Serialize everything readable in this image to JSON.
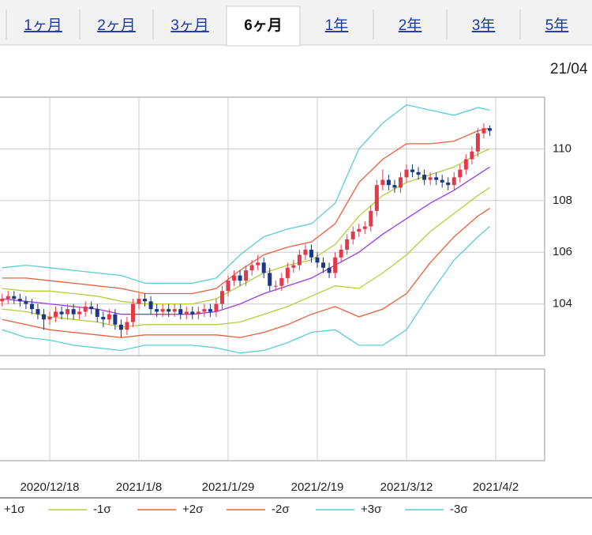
{
  "tabs": [
    "1ヶ月",
    "2ヶ月",
    "3ヶ月",
    "6ヶ月",
    "1年",
    "2年",
    "3年",
    "5年"
  ],
  "active_tab": 3,
  "date_label": "21/04",
  "chart_data": {
    "type": "candlestick",
    "categories": [
      null,
      null,
      null,
      null,
      null,
      null,
      null,
      null,
      "2020/12/18",
      null,
      null,
      null,
      null,
      null,
      null,
      null,
      null,
      null,
      null,
      null,
      null,
      null,
      null,
      "2021/1/8",
      null,
      null,
      null,
      null,
      null,
      null,
      null,
      null,
      null,
      null,
      null,
      null,
      null,
      null,
      "2021/1/29",
      null,
      null,
      null,
      null,
      null,
      null,
      null,
      null,
      null,
      null,
      null,
      null,
      null,
      null,
      "2021/2/19",
      null,
      null,
      null,
      null,
      null,
      null,
      null,
      null,
      null,
      null,
      null,
      null,
      null,
      null,
      "2021/3/12",
      null,
      null,
      null,
      null,
      null,
      null,
      null,
      null,
      null,
      null,
      null,
      null,
      null,
      null,
      "2021/4/2"
    ],
    "open": [
      104.1,
      104.2,
      104.3,
      104.2,
      104.1,
      104.0,
      103.8,
      103.6,
      103.4,
      103.5,
      103.7,
      103.6,
      103.8,
      103.6,
      103.7,
      103.9,
      103.8,
      103.5,
      103.4,
      103.6,
      103.2,
      103.0,
      103.3,
      104.0,
      104.2,
      104.1,
      103.8,
      103.7,
      103.8,
      103.7,
      103.8,
      103.6,
      103.7,
      103.6,
      103.7,
      103.8,
      103.7,
      104.0,
      104.5,
      104.9,
      105.1,
      104.9,
      105.3,
      105.5,
      105.6,
      105.2,
      104.7,
      104.7,
      105.0,
      105.4,
      105.5,
      105.9,
      106.1,
      105.8,
      105.6,
      105.4,
      105.2,
      105.8,
      106.1,
      106.5,
      106.8,
      106.9,
      107.0,
      107.6,
      108.6,
      108.8,
      108.6,
      108.5,
      108.9,
      109.2,
      109.1,
      109.0,
      108.8,
      108.9,
      108.8,
      108.7,
      108.6,
      108.9,
      109.2,
      109.6,
      109.9,
      110.6,
      110.8,
      null
    ],
    "high": [
      104.4,
      104.5,
      104.5,
      104.4,
      104.3,
      104.2,
      104.0,
      103.8,
      103.7,
      103.9,
      103.9,
      104.0,
      104.0,
      103.9,
      104.1,
      104.1,
      104.0,
      103.7,
      103.8,
      103.8,
      103.4,
      103.5,
      104.2,
      104.4,
      104.4,
      104.3,
      104.0,
      104.0,
      104.0,
      104.0,
      104.0,
      103.9,
      103.9,
      103.9,
      104.0,
      104.0,
      104.2,
      104.7,
      105.1,
      105.3,
      105.3,
      105.5,
      105.7,
      105.9,
      105.8,
      105.4,
      104.9,
      105.2,
      105.6,
      105.7,
      106.1,
      106.3,
      106.3,
      106.0,
      105.8,
      105.6,
      106.0,
      106.3,
      106.7,
      107.0,
      107.1,
      107.2,
      107.8,
      108.8,
      109.2,
      109.0,
      108.8,
      109.1,
      109.4,
      109.4,
      109.3,
      109.2,
      109.1,
      109.1,
      109.0,
      108.9,
      109.1,
      109.4,
      109.8,
      110.1,
      110.8,
      111.0,
      110.9,
      null
    ],
    "low": [
      103.9,
      104.0,
      104.0,
      103.9,
      103.8,
      103.6,
      103.4,
      103.0,
      103.2,
      103.3,
      103.4,
      103.4,
      103.4,
      103.4,
      103.5,
      103.6,
      103.3,
      103.1,
      103.2,
      103.0,
      102.7,
      102.8,
      103.1,
      103.8,
      103.9,
      103.6,
      103.5,
      103.5,
      103.5,
      103.5,
      103.4,
      103.4,
      103.4,
      103.4,
      103.5,
      103.5,
      103.5,
      103.8,
      104.3,
      104.7,
      104.7,
      104.7,
      105.1,
      105.3,
      105.0,
      104.5,
      104.5,
      104.5,
      104.8,
      105.2,
      105.3,
      105.7,
      105.6,
      105.4,
      105.2,
      105.0,
      105.0,
      105.6,
      105.9,
      106.3,
      106.6,
      106.7,
      106.8,
      107.4,
      108.4,
      108.4,
      108.3,
      108.3,
      108.7,
      108.9,
      108.8,
      108.6,
      108.6,
      108.6,
      108.5,
      108.4,
      108.4,
      108.7,
      109.0,
      109.4,
      109.7,
      110.4,
      110.5,
      null
    ],
    "close": [
      104.2,
      104.3,
      104.2,
      104.1,
      104.0,
      103.8,
      103.6,
      103.4,
      103.5,
      103.7,
      103.6,
      103.8,
      103.6,
      103.7,
      103.9,
      103.8,
      103.5,
      103.4,
      103.6,
      103.2,
      103.0,
      103.3,
      104.0,
      104.2,
      104.1,
      103.8,
      103.7,
      103.8,
      103.7,
      103.8,
      103.6,
      103.7,
      103.6,
      103.7,
      103.8,
      103.7,
      104.0,
      104.5,
      104.9,
      105.1,
      104.9,
      105.3,
      105.5,
      105.6,
      105.2,
      104.7,
      104.7,
      105.0,
      105.4,
      105.5,
      105.9,
      106.1,
      105.8,
      105.6,
      105.4,
      105.2,
      105.8,
      106.1,
      106.5,
      106.8,
      106.9,
      107.0,
      107.6,
      108.6,
      108.8,
      108.6,
      108.5,
      108.9,
      109.2,
      109.1,
      109.0,
      108.8,
      108.9,
      108.8,
      108.7,
      108.6,
      108.9,
      109.2,
      109.6,
      109.9,
      110.6,
      110.8,
      110.7,
      null
    ],
    "up_color": "#e23a4b",
    "down_color": "#1b3786",
    "ylim": [
      102,
      112
    ],
    "yticks": [
      104,
      106,
      108,
      110
    ],
    "grid": true,
    "overlays": {
      "x": [
        0,
        4,
        8,
        12,
        16,
        20,
        24,
        28,
        32,
        36,
        40,
        44,
        48,
        52,
        56,
        60,
        64,
        68,
        72,
        76,
        80,
        82
      ],
      "series": [
        {
          "color": "#9a3de6",
          "values": [
            104.2,
            104.1,
            104.0,
            103.9,
            103.8,
            103.6,
            103.6,
            103.6,
            103.6,
            103.7,
            104.0,
            104.4,
            104.7,
            105.0,
            105.5,
            106.0,
            106.7,
            107.3,
            107.9,
            108.4,
            109.0,
            109.3
          ]
        },
        {
          "name": "+1σ",
          "color": "#b8cc3c",
          "values": [
            104.6,
            104.5,
            104.5,
            104.4,
            104.3,
            104.1,
            104.0,
            104.0,
            104.0,
            104.2,
            104.7,
            105.2,
            105.5,
            105.7,
            106.3,
            107.4,
            108.2,
            108.7,
            109.0,
            109.3,
            109.8,
            110.0
          ]
        },
        {
          "name": "-1σ",
          "color": "#b8cc3c",
          "values": [
            103.8,
            103.7,
            103.5,
            103.4,
            103.3,
            103.1,
            103.2,
            103.2,
            103.2,
            103.2,
            103.3,
            103.6,
            103.9,
            104.3,
            104.7,
            104.6,
            105.2,
            105.9,
            106.8,
            107.5,
            108.2,
            108.5
          ]
        },
        {
          "name": "+2σ",
          "color": "#e9603d",
          "values": [
            105.0,
            105.0,
            104.9,
            104.8,
            104.7,
            104.6,
            104.4,
            104.4,
            104.4,
            104.6,
            105.3,
            105.9,
            106.2,
            106.4,
            107.1,
            108.7,
            109.6,
            110.2,
            110.2,
            110.3,
            110.7,
            110.8
          ]
        },
        {
          "name": "-2σ",
          "color": "#e9603d",
          "values": [
            103.4,
            103.2,
            103.0,
            102.9,
            102.8,
            102.7,
            102.8,
            102.8,
            102.8,
            102.8,
            102.7,
            102.9,
            103.2,
            103.6,
            103.9,
            103.5,
            103.8,
            104.4,
            105.6,
            106.6,
            107.4,
            107.7
          ]
        },
        {
          "name": "+3σ",
          "color": "#5ccbd6",
          "values": [
            105.4,
            105.5,
            105.4,
            105.3,
            105.2,
            105.1,
            104.8,
            104.8,
            104.8,
            105.0,
            105.9,
            106.6,
            106.9,
            107.1,
            107.9,
            110.0,
            111.0,
            111.7,
            111.5,
            111.3,
            111.6,
            111.5
          ]
        },
        {
          "name": "-3σ",
          "color": "#5ccbd6",
          "values": [
            103.0,
            102.7,
            102.6,
            102.4,
            102.3,
            102.2,
            102.4,
            102.4,
            102.4,
            102.3,
            102.1,
            102.2,
            102.5,
            102.9,
            103.0,
            102.4,
            102.4,
            103.0,
            104.4,
            105.7,
            106.6,
            107.0
          ]
        }
      ]
    }
  }
}
